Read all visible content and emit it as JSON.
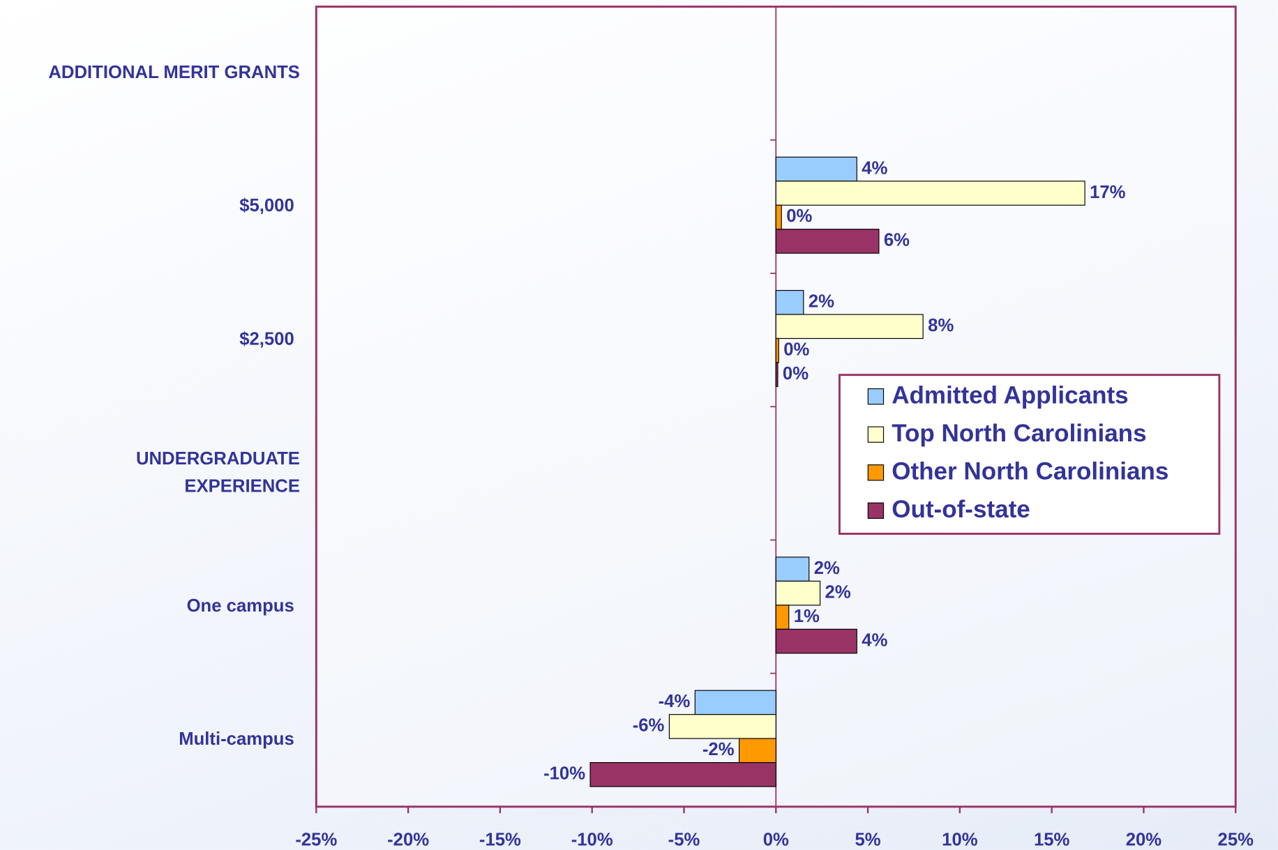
{
  "chart_data": {
    "type": "hbar",
    "categories": [
      "ADDITIONAL MERIT GRANTS",
      "$5,000",
      "$2,500",
      "UNDERGRADUATE EXPERIENCE",
      "One campus",
      "Multi-campus"
    ],
    "series": [
      {
        "name": "Admitted Applicants",
        "color": "#99ccff",
        "values": [
          null,
          4.4,
          1.5,
          null,
          1.8,
          -4.4
        ],
        "value_labels": [
          null,
          "4%",
          "2%",
          null,
          "2%",
          "-4%"
        ]
      },
      {
        "name": "Top North Carolinians",
        "color": "#ffffcc",
        "values": [
          null,
          16.8,
          8,
          null,
          2.4,
          -5.8
        ],
        "value_labels": [
          null,
          "17%",
          "8%",
          null,
          "2%",
          "-6%"
        ]
      },
      {
        "name": "Other North Carolinians",
        "color": "#ff9900",
        "values": [
          null,
          0.3,
          0.15,
          null,
          0.7,
          -2
        ],
        "value_labels": [
          null,
          "0%",
          "0%",
          null,
          "1%",
          "-2%"
        ]
      },
      {
        "name": "Out-of-state",
        "color": "#993366",
        "values": [
          null,
          5.6,
          0.1,
          null,
          4.4,
          -10.1
        ],
        "value_labels": [
          null,
          "6%",
          "0%",
          null,
          "4%",
          "-10%"
        ]
      }
    ],
    "xlim": [
      -25,
      25
    ],
    "xticks": [
      {
        "value": -25,
        "label": "-25%"
      },
      {
        "value": -20,
        "label": "-20%"
      },
      {
        "value": -15,
        "label": "-15%"
      },
      {
        "value": -10,
        "label": "-10%"
      },
      {
        "value": -5,
        "label": "-5%"
      },
      {
        "value": 0,
        "label": "0%"
      },
      {
        "value": 5,
        "label": "5%"
      },
      {
        "value": 10,
        "label": "10%"
      },
      {
        "value": 15,
        "label": "15%"
      },
      {
        "value": 20,
        "label": "20%"
      },
      {
        "value": 25,
        "label": "25%"
      }
    ],
    "grid": false
  }
}
